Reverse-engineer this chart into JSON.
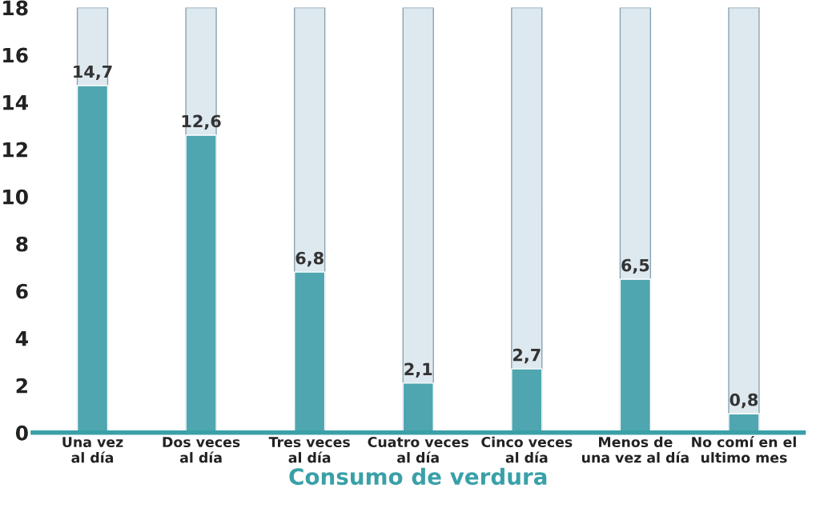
{
  "chart_data": {
    "type": "bar",
    "xlabel": "Consumo de verdura",
    "categories": [
      "Una vez\nal día",
      "Dos veces\nal día",
      "Tres veces\nal día",
      "Cuatro veces\nal día",
      "Cinco veces\nal día",
      "Menos de\nuna vez al día",
      "No comí en el\nultimo mes"
    ],
    "values": [
      14.7,
      12.6,
      6.8,
      2.1,
      2.7,
      6.5,
      0.8
    ],
    "value_labels": [
      "14,7",
      "12,6",
      "6,8",
      "2,1",
      "2,7",
      "6,5",
      "0,8"
    ],
    "color": "#4fa6b0",
    "ylim": [
      0,
      18
    ],
    "yticks": [
      0,
      2,
      4,
      6,
      8,
      10,
      12,
      14,
      16,
      18
    ],
    "grid": false,
    "legend": false
  }
}
